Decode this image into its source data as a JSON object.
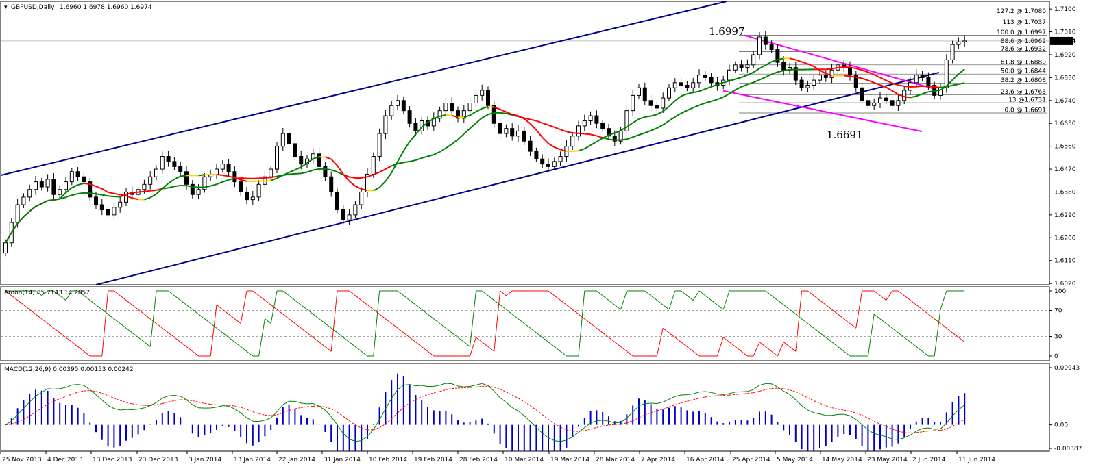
{
  "header": {
    "symbol": "GBPUSD,Daily",
    "ohlc": "1.6960 1.6978 1.6960 1.6974"
  },
  "chart_data": [
    {
      "type": "candlestick",
      "symbol": "GBPUSD",
      "timeframe": "Daily",
      "ylim": [
        1.6015,
        1.713
      ],
      "y_ticks": [
        "1.7100",
        "1.7010",
        "1.6920",
        "1.6830",
        "1.6740",
        "1.6650",
        "1.6560",
        "1.6470",
        "1.6380",
        "1.6290",
        "1.6200",
        "1.6110",
        "1.6020"
      ],
      "x_ticks": [
        "25 Nov 2013",
        "4 Dec 2013",
        "13 Dec 2013",
        "23 Dec 2013",
        "3 Jan 2014",
        "13 Jan 2014",
        "22 Jan 2014",
        "31 Jan 2014",
        "10 Feb 2014",
        "19 Feb 2014",
        "28 Feb 2014",
        "10 Mar 2014",
        "19 Mar 2014",
        "28 Mar 2014",
        "7 Apr 2014",
        "16 Apr 2014",
        "25 Apr 2014",
        "5 May 2014",
        "14 May 2014",
        "23 May 2014",
        "2 Jun 2014",
        "11 Jun 2014"
      ],
      "last_price": "1.6974",
      "annotations": [
        "1.6997",
        "1.6691"
      ],
      "fibonacci": [
        {
          "label": "127.2 @ 1.7080",
          "value": 1.708
        },
        {
          "label": "113 @ 1.7037",
          "value": 1.7037
        },
        {
          "label": "100.0 @ 1.6997",
          "value": 1.6997
        },
        {
          "label": "88.6 @ 1.6962",
          "value": 1.6962
        },
        {
          "label": "78.6 @ 1.6932",
          "value": 1.6932
        },
        {
          "label": "61.8 @ 1.6880",
          "value": 1.688
        },
        {
          "label": "50.0 @ 1.6844",
          "value": 1.6844
        },
        {
          "label": "38.2 @ 1.6808",
          "value": 1.6808
        },
        {
          "label": "23.6 @ 1.6763",
          "value": 1.6763
        },
        {
          "label": "13 @1.6731",
          "value": 1.6731
        },
        {
          "label": "0.0 @ 1.6691",
          "value": 1.6691
        }
      ],
      "trend_channel": [
        {
          "name": "upper",
          "from": [
            0,
            1.6445
          ],
          "to": [
            1060,
            1.713
          ]
        },
        {
          "name": "lower",
          "from": [
            140,
            1.6015
          ],
          "to": [
            1370,
            1.685
          ]
        },
        {
          "name": "falling-upper",
          "from": [
            1085,
            1.6997
          ],
          "to": [
            1360,
            1.6788
          ]
        },
        {
          "name": "falling-lower",
          "from": [
            1055,
            1.6778
          ],
          "to": [
            1345,
            1.6618
          ]
        }
      ],
      "closes": [
        1.618,
        1.626,
        1.633,
        1.636,
        1.639,
        1.642,
        1.64,
        1.643,
        1.637,
        1.639,
        1.642,
        1.646,
        1.644,
        1.642,
        1.636,
        1.633,
        1.631,
        1.629,
        1.632,
        1.634,
        1.638,
        1.637,
        1.639,
        1.641,
        1.644,
        1.647,
        1.652,
        1.65,
        1.648,
        1.646,
        1.641,
        1.637,
        1.639,
        1.644,
        1.645,
        1.647,
        1.649,
        1.646,
        1.642,
        1.638,
        1.635,
        1.636,
        1.641,
        1.644,
        1.647,
        1.656,
        1.661,
        1.657,
        1.652,
        1.649,
        1.651,
        1.653,
        1.648,
        1.644,
        1.638,
        1.631,
        1.627,
        1.629,
        1.633,
        1.638,
        1.645,
        1.652,
        1.661,
        1.668,
        1.672,
        1.674,
        1.67,
        1.665,
        1.662,
        1.666,
        1.664,
        1.667,
        1.67,
        1.673,
        1.67,
        1.667,
        1.67,
        1.673,
        1.676,
        1.678,
        1.672,
        1.665,
        1.661,
        1.663,
        1.66,
        1.662,
        1.658,
        1.654,
        1.651,
        1.649,
        1.648,
        1.65,
        1.652,
        1.656,
        1.66,
        1.664,
        1.666,
        1.668,
        1.665,
        1.663,
        1.66,
        1.658,
        1.662,
        1.67,
        1.676,
        1.679,
        1.674,
        1.672,
        1.671,
        1.675,
        1.679,
        1.681,
        1.68,
        1.679,
        1.681,
        1.684,
        1.683,
        1.681,
        1.68,
        1.682,
        1.686,
        1.688,
        1.687,
        1.688,
        1.692,
        1.699,
        1.696,
        1.694,
        1.689,
        1.686,
        1.687,
        1.682,
        1.679,
        1.68,
        1.682,
        1.684,
        1.683,
        1.686,
        1.688,
        1.687,
        1.684,
        1.679,
        1.674,
        1.672,
        1.673,
        1.675,
        1.674,
        1.672,
        1.674,
        1.678,
        1.681,
        1.684,
        1.683,
        1.68,
        1.676,
        1.679,
        1.69,
        1.696,
        1.697,
        1.6974
      ]
    },
    {
      "type": "line",
      "name": "Aroon(14) 85.7143 14.2857",
      "ylim": [
        0,
        100
      ],
      "y_ticks": [
        "100",
        "70",
        "30",
        "0"
      ],
      "series": [
        {
          "name": "Aroon Up",
          "color": "#008000",
          "last": 85.7143
        },
        {
          "name": "Aroon Down",
          "color": "#ff0000",
          "last": 14.2857
        }
      ]
    },
    {
      "type": "line",
      "name": "MACD(12,26,9) 0.00395 0.00153 0.00242",
      "y_ticks": [
        "0.00943",
        "0.00",
        "-0.00387"
      ],
      "series": [
        {
          "name": "MACD",
          "color": "#008000",
          "last": 0.00395
        },
        {
          "name": "Signal",
          "color": "#ff0000",
          "last": 0.00153
        },
        {
          "name": "Histogram",
          "color": "#0000cc",
          "last": 0.00242
        }
      ]
    }
  ]
}
